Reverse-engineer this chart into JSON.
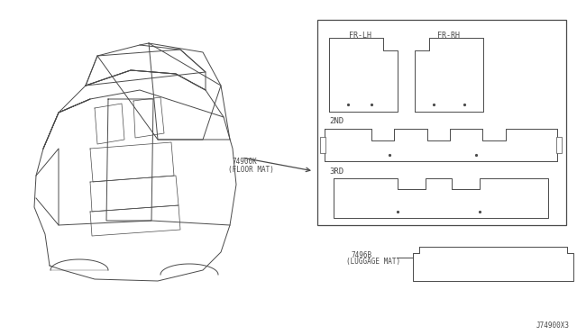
{
  "bg_color": "#ffffff",
  "line_color": "#4a4a4a",
  "title_ref": "J74900X3",
  "part1_label": "74900K",
  "part1_sublabel": "(FLOOR MAT)",
  "part2_label": "7496B",
  "part2_sublabel": "(LUGGAGE MAT)",
  "fr_lh_label": "FR-LH",
  "fr_rh_label": "FR-RH",
  "row2_label": "2ND",
  "row3_label": "3RD"
}
